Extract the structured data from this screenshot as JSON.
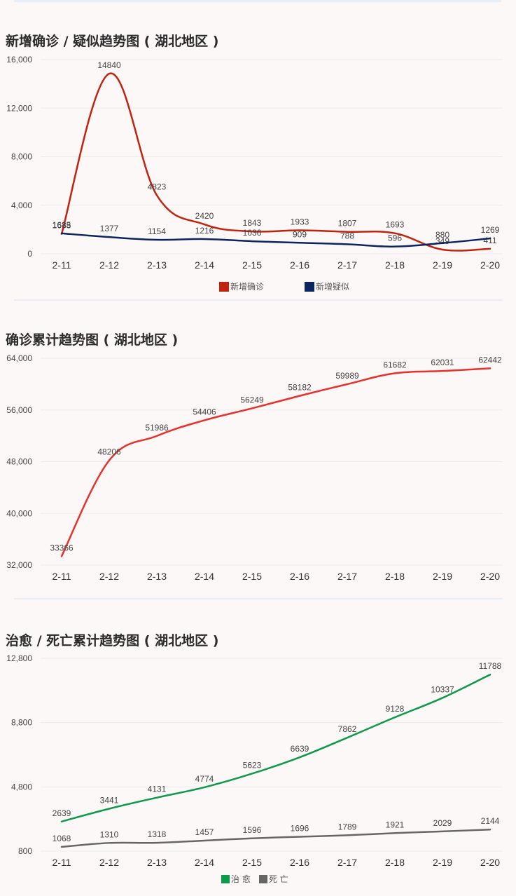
{
  "charts": [
    {
      "title": "新增确诊 / 疑似趋势图 ( 湖北地区 )",
      "chart_data": {
        "type": "line",
        "title": "新增确诊 / 疑似趋势图 ( 湖北地区 )",
        "categories": [
          "2-11",
          "2-12",
          "2-13",
          "2-14",
          "2-15",
          "2-16",
          "2-17",
          "2-18",
          "2-19",
          "2-20"
        ],
        "ylim": [
          0,
          16000
        ],
        "yticks": [
          0,
          4000,
          8000,
          12000,
          16000
        ],
        "ytick_labels": [
          "0",
          "4,000",
          "8,000",
          "12,000",
          "16,000"
        ],
        "grid": true,
        "legend_position": "bottom",
        "series": [
          {
            "name": "新增确诊",
            "color": "#c1230e",
            "values": [
              1638,
              14840,
              4823,
              2420,
              1843,
              1933,
              1807,
              1693,
              349,
              411
            ]
          },
          {
            "name": "新增疑似",
            "color": "#0b2462",
            "values": [
              1685,
              1377,
              1154,
              1216,
              1036,
              909,
              788,
              596,
              880,
              1269
            ]
          }
        ]
      }
    },
    {
      "title": "确诊累计趋势图 ( 湖北地区 )",
      "chart_data": {
        "type": "line",
        "title": "确诊累计趋势图 ( 湖北地区 )",
        "categories": [
          "2-11",
          "2-12",
          "2-13",
          "2-14",
          "2-15",
          "2-16",
          "2-17",
          "2-18",
          "2-19",
          "2-20"
        ],
        "ylim": [
          32000,
          64000
        ],
        "yticks": [
          32000,
          40000,
          48000,
          56000,
          64000
        ],
        "ytick_labels": [
          "32,000",
          "40,000",
          "48,000",
          "56,000",
          "64,000"
        ],
        "grid": true,
        "legend_position": "none",
        "series": [
          {
            "name": "",
            "color": "#e8312a",
            "values": [
              33366,
              48206,
              51986,
              54406,
              56249,
              58182,
              59989,
              61682,
              62031,
              62442
            ]
          }
        ]
      }
    },
    {
      "title": "治愈 / 死亡累计趋势图 ( 湖北地区 )",
      "chart_data": {
        "type": "line",
        "title": "治愈 / 死亡累计趋势图 ( 湖北地区 )",
        "categories": [
          "2-11",
          "2-12",
          "2-13",
          "2-14",
          "2-15",
          "2-16",
          "2-17",
          "2-18",
          "2-19",
          "2-20"
        ],
        "ylim": [
          800,
          12800
        ],
        "yticks": [
          800,
          4800,
          8800,
          12800
        ],
        "ytick_labels": [
          "800",
          "4,800",
          "8,800",
          "12,800"
        ],
        "grid": true,
        "legend_position": "bottom",
        "series": [
          {
            "name": "治 愈",
            "color": "#0e9a4b",
            "values": [
              2639,
              3441,
              4131,
              4774,
              5623,
              6639,
              7862,
              9128,
              10337,
              11788
            ]
          },
          {
            "name": "死 亡",
            "color": "#666666",
            "values": [
              1068,
              1310,
              1318,
              1457,
              1596,
              1696,
              1789,
              1921,
              2029,
              2144
            ]
          }
        ]
      }
    }
  ]
}
